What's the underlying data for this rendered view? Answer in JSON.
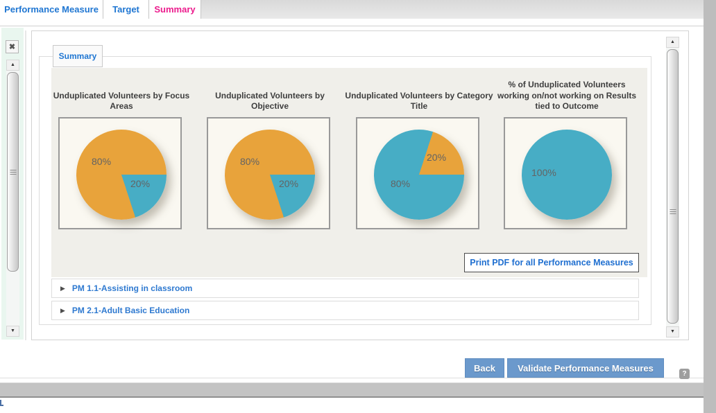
{
  "tab_bar": {
    "tabs": [
      {
        "label": "Performance Measure",
        "active": false
      },
      {
        "label": "Target",
        "active": false
      },
      {
        "label": "Summary",
        "active": true
      }
    ]
  },
  "left_panel": {
    "close_icon": "✖"
  },
  "scrollbars": {
    "up_icon": "▲",
    "down_icon": "▼"
  },
  "summary_section": {
    "tab_label": "Summary"
  },
  "charts": {
    "print_button_label": "Print PDF for all Performance Measures"
  },
  "chart_data": [
    {
      "type": "pie",
      "title": "Unduplicated Volunteers by Focus\nAreas",
      "slices": [
        {
          "label": "80%",
          "value": 80,
          "color": "#E8A33B"
        },
        {
          "label": "20%",
          "value": 20,
          "color": "#47ADC5"
        }
      ],
      "conic": "#E8A33B 0deg 90deg, #47ADC5 90deg 162deg, #E8A33B 162deg 360deg"
    },
    {
      "type": "pie",
      "title": "Unduplicated Volunteers by\nObjective",
      "slices": [
        {
          "label": "80%",
          "value": 80,
          "color": "#E8A33B"
        },
        {
          "label": "20%",
          "value": 20,
          "color": "#47ADC5"
        }
      ],
      "conic": "#E8A33B 0deg 90deg, #47ADC5 90deg 162deg, #E8A33B 162deg 360deg"
    },
    {
      "type": "pie",
      "title": "Unduplicated Volunteers by Category\nTitle",
      "slices": [
        {
          "label": "80%",
          "value": 80,
          "color": "#47ADC5"
        },
        {
          "label": "20%",
          "value": 20,
          "color": "#E8A33B"
        }
      ],
      "conic": "#47ADC5 0deg 18deg, #E8A33B 18deg 90deg, #47ADC5 90deg 360deg"
    },
    {
      "type": "pie",
      "title": "% of Unduplicated Volunteers\nworking on/not working on Results\ntied to Outcome",
      "slices": [
        {
          "label": "100%",
          "value": 100,
          "color": "#47ADC5"
        }
      ],
      "conic": "#47ADC5 0deg 360deg"
    }
  ],
  "accordion": {
    "expand_icon": "▶",
    "rows": [
      {
        "label": "PM 1.1-Assisting in classroom"
      },
      {
        "label": "PM 2.1-Adult Basic Education"
      }
    ]
  },
  "footer": {
    "back_label": "Back",
    "validate_label": "Validate Performance Measures",
    "help_icon": "?"
  },
  "colors": {
    "accent_blue": "#1F76D2",
    "active_tab_pink": "#EC1C8D",
    "button_blue": "#6B99CC",
    "pie_orange": "#E8A33B",
    "pie_teal": "#47ADC5",
    "panel_gray": "#F0EFEA"
  }
}
